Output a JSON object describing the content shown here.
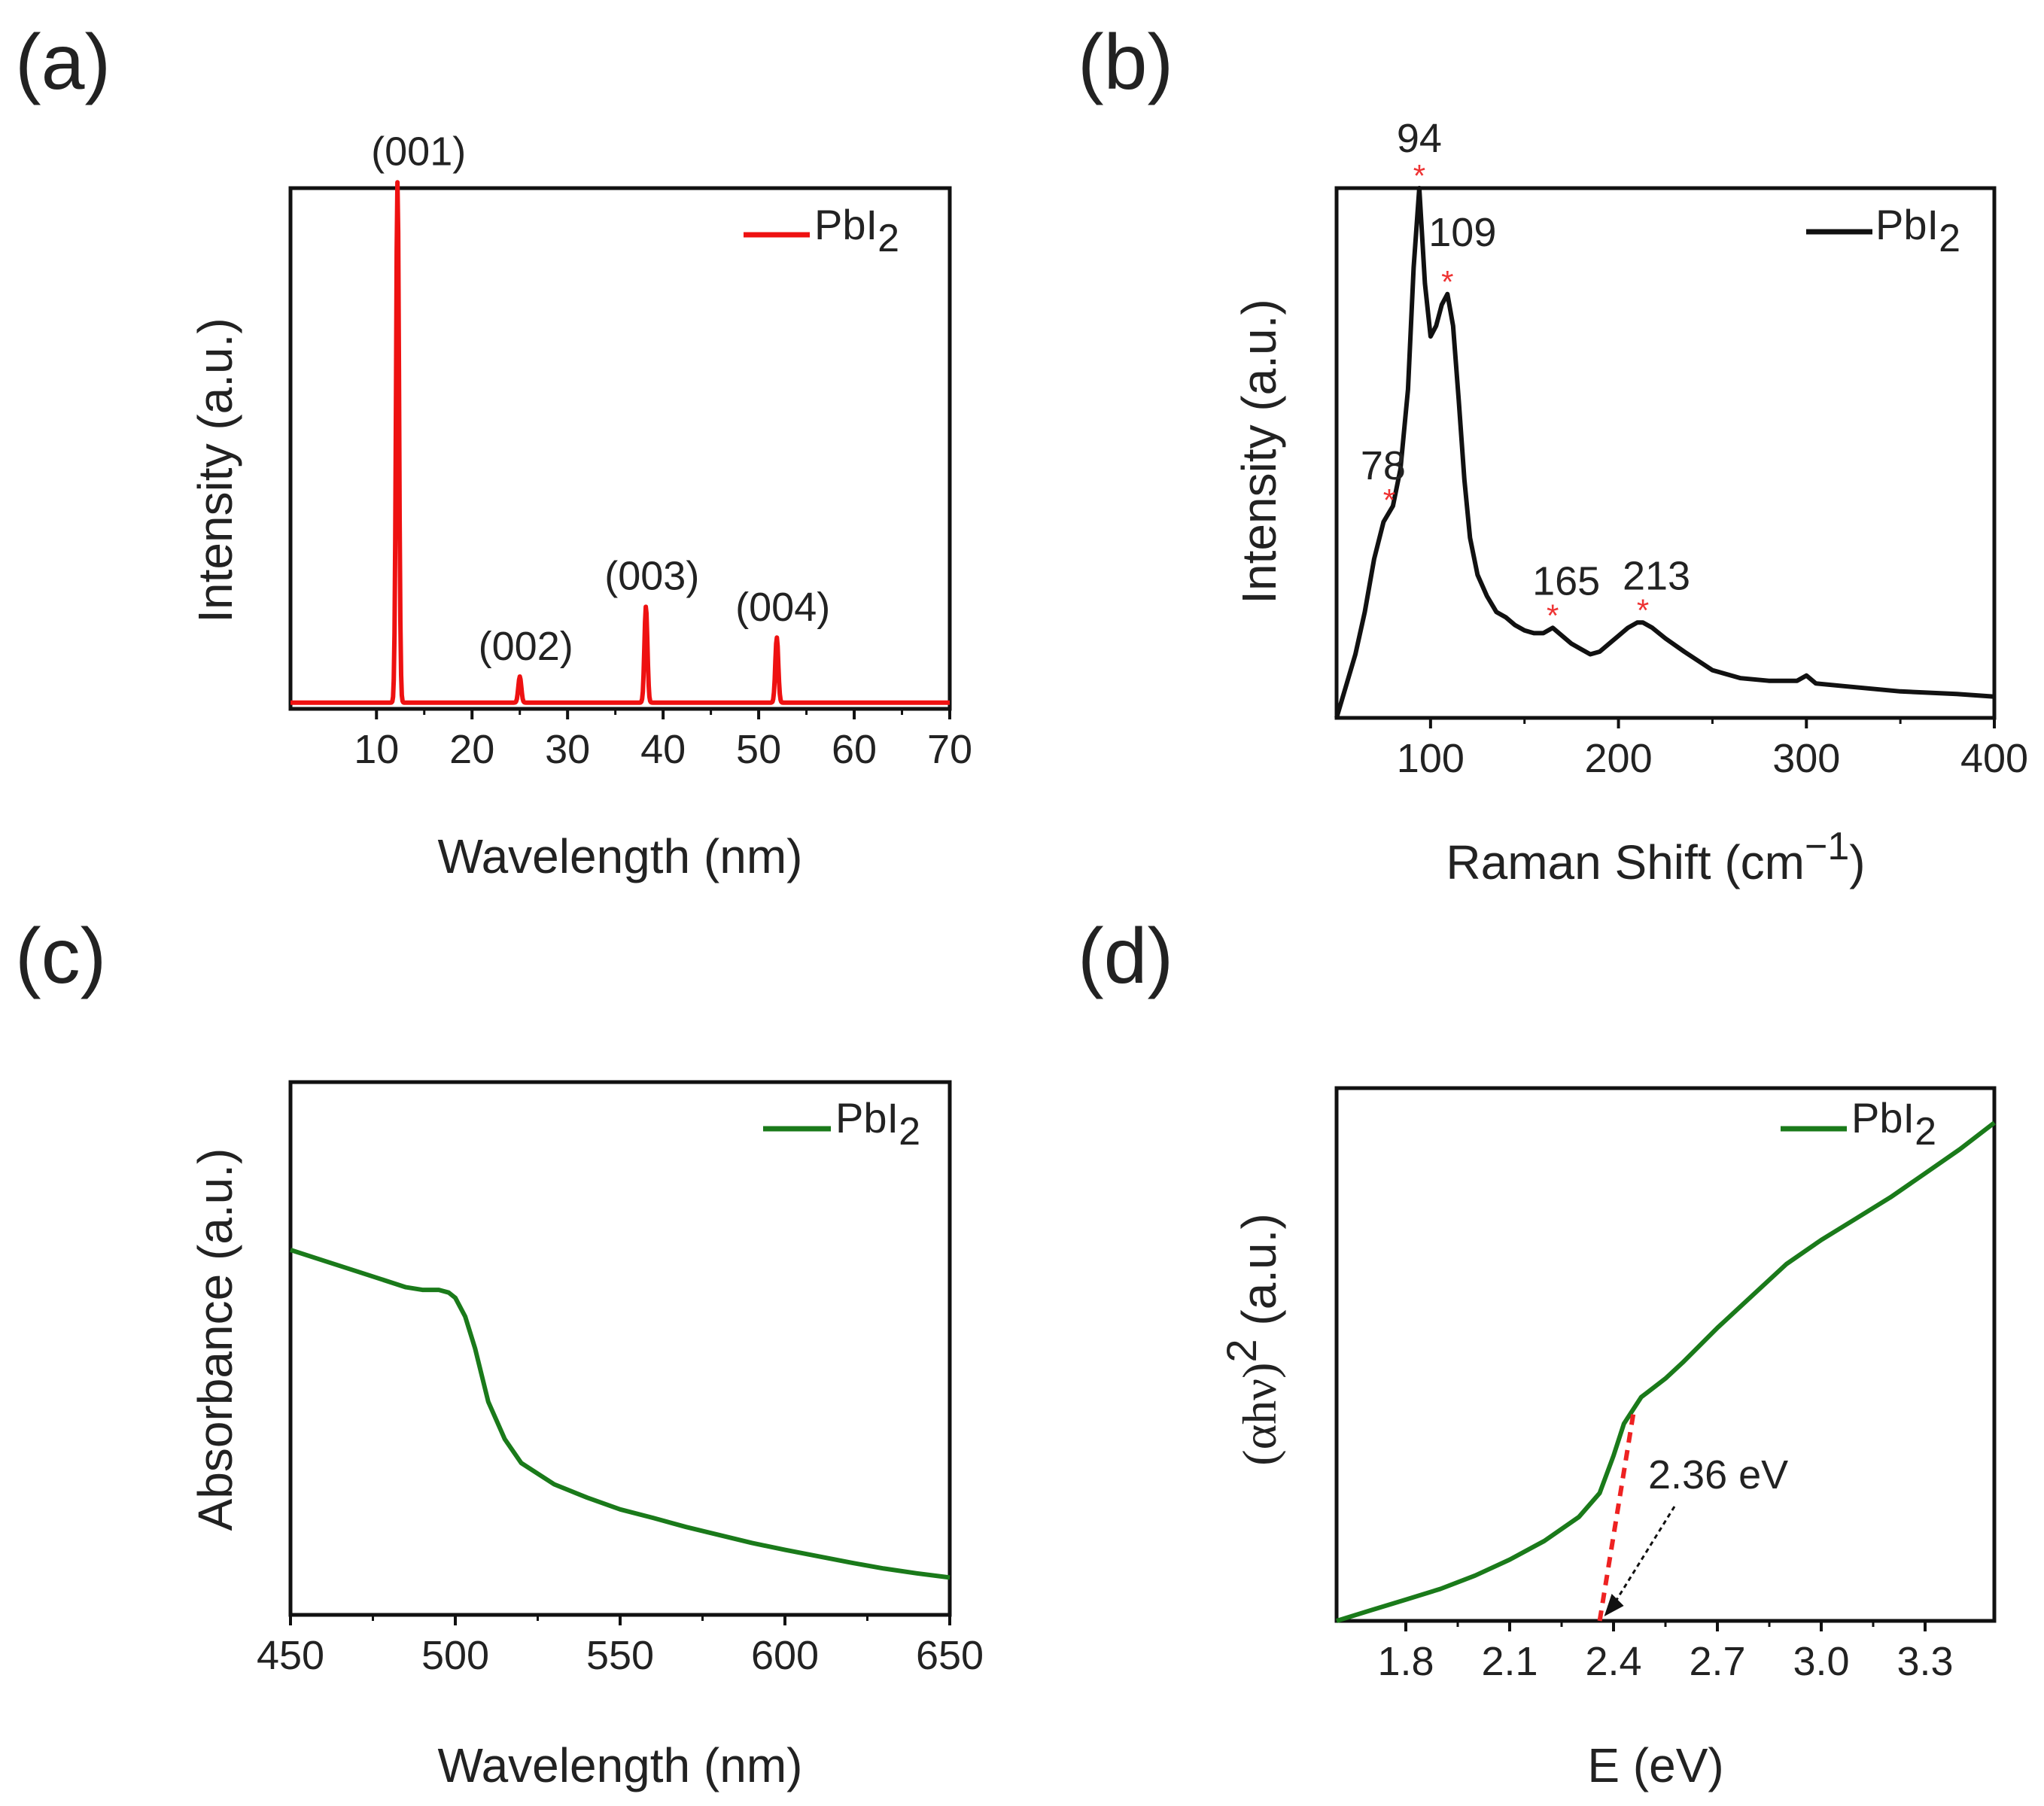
{
  "chart_data": [
    {
      "panel": "(a)",
      "type": "line",
      "xlabel": "Wavelength (nm)",
      "ylabel": "Intensity (a.u.)",
      "xlim": [
        1,
        70
      ],
      "ylim": [
        0,
        100
      ],
      "xticks": [
        10,
        20,
        30,
        40,
        50,
        60,
        70
      ],
      "color": "#ee1111",
      "legend": {
        "label": "PbI",
        "sub": "2",
        "position": "top-right"
      },
      "peaks": [
        {
          "x": 12.2,
          "height": 100,
          "width": 0.22,
          "label": "(001)"
        },
        {
          "x": 25.0,
          "height": 5,
          "width": 0.22,
          "label": "(002)"
        },
        {
          "x": 38.2,
          "height": 18.5,
          "width": 0.22,
          "label": "(003)"
        },
        {
          "x": 51.9,
          "height": 12.5,
          "width": 0.22,
          "label": "(004)"
        }
      ],
      "baseline": 1.2
    },
    {
      "panel": "(b)",
      "type": "line",
      "xlabel": "Raman Shift (cm",
      "xlabel_sup": "−1",
      "xlabel_end": ")",
      "ylabel": "Intensity (a.u.)",
      "xlim": [
        50,
        400
      ],
      "ylim": [
        0,
        100
      ],
      "xticks": [
        100,
        200,
        300,
        400
      ],
      "color": "#111111",
      "legend": {
        "label": "PbI",
        "sub": "2",
        "position": "top-right"
      },
      "x": [
        50,
        55,
        60,
        65,
        70,
        75,
        80,
        84,
        88,
        91,
        94,
        97,
        100,
        103,
        106,
        109,
        112,
        115,
        118,
        121,
        125,
        130,
        135,
        140,
        145,
        150,
        155,
        160,
        165,
        170,
        175,
        180,
        185,
        190,
        195,
        200,
        205,
        210,
        213,
        218,
        225,
        235,
        250,
        265,
        280,
        295,
        300,
        305,
        320,
        350,
        380,
        400
      ],
      "y": [
        0,
        6,
        12,
        20,
        30,
        37,
        40,
        47,
        62,
        85,
        100,
        82,
        72,
        74,
        78,
        80,
        74,
        60,
        45,
        34,
        27,
        23,
        20,
        19,
        17.5,
        16.5,
        16,
        16,
        17,
        15.5,
        14,
        13,
        12,
        12.5,
        14,
        15.5,
        17,
        18,
        18,
        17,
        15,
        12.5,
        9,
        7.5,
        7,
        7,
        8,
        6.5,
        6,
        5,
        4.5,
        4
      ],
      "annotations": [
        {
          "x": 94,
          "label": "94"
        },
        {
          "x": 109,
          "label": "109"
        },
        {
          "x": 78,
          "label": "78"
        },
        {
          "x": 165,
          "label": "165"
        },
        {
          "x": 213,
          "label": "213"
        }
      ],
      "marker": "*",
      "marker_color": "#ee3333"
    },
    {
      "panel": "(c)",
      "type": "line",
      "xlabel": "Wavelength (nm)",
      "ylabel": "Absorbance (a.u.)",
      "xlim": [
        450,
        650
      ],
      "ylim": [
        0,
        100
      ],
      "xticks": [
        450,
        500,
        550,
        600,
        650
      ],
      "color": "#1a7a1a",
      "legend": {
        "label": "PbI",
        "sub": "2",
        "position": "top-right"
      },
      "x": [
        450,
        460,
        470,
        480,
        485,
        490,
        495,
        498,
        500,
        503,
        506,
        510,
        515,
        520,
        530,
        540,
        550,
        560,
        570,
        580,
        590,
        600,
        610,
        620,
        630,
        640,
        650
      ],
      "y": [
        68.5,
        66.5,
        64.5,
        62.5,
        61.5,
        61,
        61,
        60.5,
        59.5,
        56,
        50,
        40,
        33,
        28.5,
        24.5,
        22,
        19.8,
        18.2,
        16.5,
        15,
        13.5,
        12.2,
        11,
        9.8,
        8.7,
        7.8,
        7
      ],
      "ytick_visible": false
    },
    {
      "panel": "(d)",
      "type": "line",
      "xlabel": "E (eV)",
      "ylabel": "(αhν)",
      "ylabel_sup": "2",
      "ylabel_end": " (a.u.)",
      "xlim": [
        1.6,
        3.5
      ],
      "ylim": [
        0,
        100
      ],
      "xticks": [
        1.8,
        2.1,
        2.4,
        2.7,
        3.0,
        3.3
      ],
      "color": "#1a7a1a",
      "legend": {
        "label": "PbI",
        "sub": "2",
        "position": "top-right"
      },
      "x": [
        1.6,
        1.7,
        1.8,
        1.9,
        2.0,
        2.1,
        2.2,
        2.3,
        2.36,
        2.4,
        2.43,
        2.46,
        2.48,
        2.5,
        2.55,
        2.6,
        2.7,
        2.8,
        2.9,
        3.0,
        3.1,
        3.2,
        3.3,
        3.4,
        3.5
      ],
      "y": [
        0,
        2,
        4,
        6,
        8.5,
        11.5,
        15,
        19.5,
        24,
        31,
        37,
        40,
        42,
        43,
        45.5,
        48.5,
        55,
        61,
        67,
        71.5,
        75.5,
        79.5,
        84,
        88.5,
        93.5
      ],
      "tangent": {
        "x": [
          2.36,
          2.46
        ],
        "y": [
          0,
          40
        ],
        "color": "#ee2222"
      },
      "bandgap_label": "2.36 eV",
      "bandgap_x": 2.36
    }
  ],
  "panel_labels": [
    "(a)",
    "(b)",
    "(c)",
    "(d)"
  ]
}
